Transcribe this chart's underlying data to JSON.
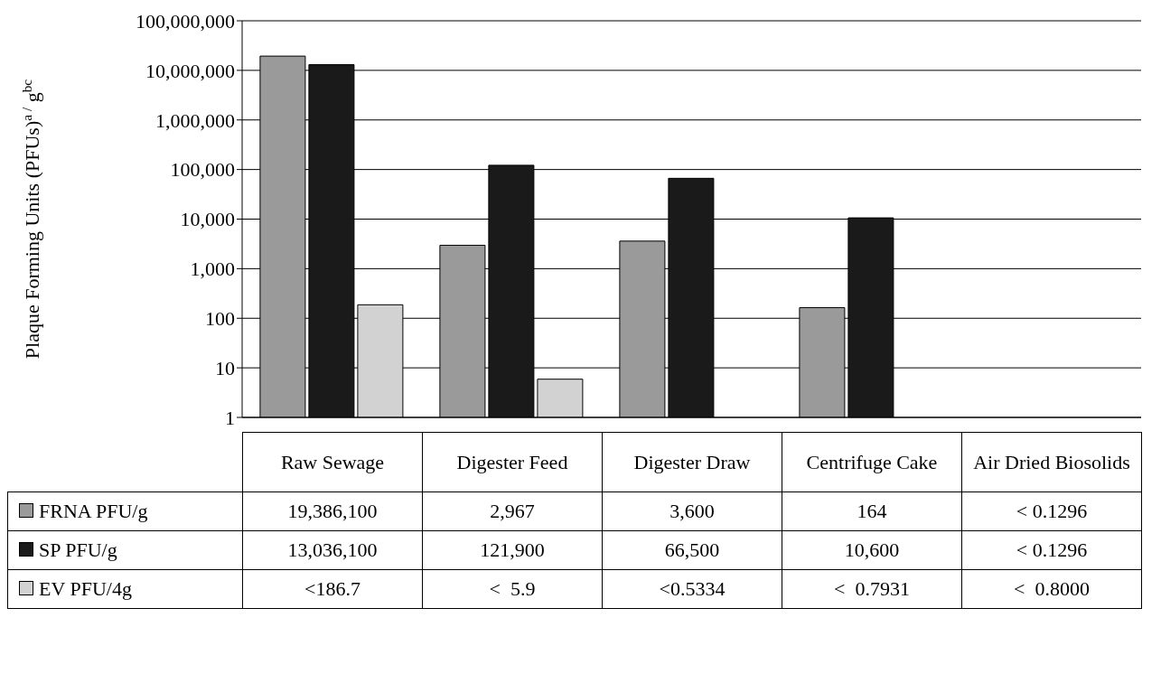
{
  "chart_data": {
    "type": "bar",
    "ylabel": "Plaque Forming Units (PFUs)$^{a /}$ g$^{bc}$",
    "categories": [
      "Raw Sewage",
      "Digester Feed",
      "Digester Draw",
      "Centrifuge Cake",
      "Air Dried Biosolids"
    ],
    "series": [
      {
        "name": "FRNA PFU/g",
        "color": "#9a9a9a",
        "values": [
          19386100,
          2967,
          3600,
          164,
          null
        ],
        "value_labels": [
          "19,386,100",
          "2,967",
          "3,600",
          "164",
          "< 0.1296"
        ]
      },
      {
        "name": "SP PFU/g",
        "color": "#1a1a1a",
        "values": [
          13036100,
          121900,
          66500,
          10600,
          null
        ],
        "value_labels": [
          "13,036,100",
          "121,900",
          "66,500",
          "10,600",
          "< 0.1296"
        ]
      },
      {
        "name": "EV PFU/4g",
        "color": "#d2d2d2",
        "values": [
          186.7,
          5.9,
          null,
          null,
          null
        ],
        "value_labels": [
          "<186.7",
          "<  5.9",
          "<0.5334",
          "<  0.7931",
          "<  0.8000"
        ]
      }
    ],
    "log": "y",
    "ylim": [
      1,
      100000000
    ],
    "yticks": [
      1,
      10,
      100,
      {
        "value": 1000,
        "label": "1,000"
      },
      {
        "value": 10000,
        "label": "10,000"
      },
      {
        "value": 100000,
        "label": "100,000"
      },
      {
        "value": 1000000,
        "label": "1,000,000"
      },
      {
        "value": 10000000,
        "label": "10,000,000"
      },
      {
        "value": 100000000,
        "label": "100,000,000"
      }
    ],
    "grid": "y",
    "legend": "bottom"
  }
}
